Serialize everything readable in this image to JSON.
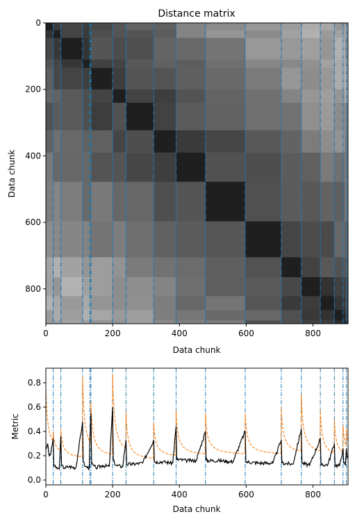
{
  "chart_data": [
    {
      "type": "heatmap",
      "title": "Distance matrix",
      "xlabel": "Data chunk",
      "ylabel": "Data chunk",
      "xlim": [
        0,
        905
      ],
      "ylim": [
        905,
        0
      ],
      "xticks": [
        0,
        200,
        400,
        600,
        800
      ],
      "yticks": [
        0,
        200,
        400,
        600,
        800
      ],
      "colormap": "gray",
      "boundaries": [
        0,
        22,
        45,
        110,
        135,
        200,
        240,
        323,
        390,
        478,
        597,
        705,
        765,
        822,
        864,
        895,
        905
      ],
      "block_darkness": [
        0.92,
        0.85,
        0.95,
        0.88,
        0.92,
        0.88,
        0.86,
        0.88,
        0.9,
        0.84,
        0.9,
        0.78,
        0.92,
        0.85,
        0.9,
        0.86
      ],
      "changepoints": [
        22,
        45,
        110,
        132,
        135,
        200,
        240,
        323,
        390,
        478,
        597,
        705,
        765,
        822,
        864,
        890,
        900
      ],
      "changepoint_color": "#1f77b4"
    },
    {
      "type": "line",
      "xlabel": "Data chunk",
      "ylabel": "Metric",
      "xlim": [
        0,
        905
      ],
      "ylim": [
        -0.04,
        0.92
      ],
      "xticks": [
        0,
        200,
        400,
        600,
        800
      ],
      "yticks": [
        0.0,
        0.2,
        0.4,
        0.6,
        0.8
      ],
      "changepoints": [
        22,
        45,
        110,
        132,
        135,
        200,
        240,
        323,
        390,
        478,
        597,
        705,
        765,
        822,
        864,
        890,
        900
      ],
      "series": [
        {
          "color": "#000000",
          "style": "solid",
          "x": [
            0,
            5,
            10,
            15,
            22,
            24,
            30,
            40,
            45,
            47,
            55,
            70,
            90,
            110,
            112,
            118,
            130,
            132,
            135,
            137,
            150,
            170,
            190,
            200,
            202,
            210,
            230,
            240,
            242,
            260,
            290,
            323,
            325,
            350,
            380,
            390,
            392,
            420,
            450,
            478,
            480,
            520,
            560,
            597,
            599,
            640,
            680,
            705,
            707,
            740,
            765,
            767,
            790,
            822,
            824,
            845,
            864,
            866,
            880,
            890,
            892,
            897,
            900,
            903,
            905
          ],
          "y": [
            0.25,
            0.3,
            0.2,
            0.22,
            0.34,
            0.12,
            0.1,
            0.09,
            0.36,
            0.12,
            0.1,
            0.11,
            0.1,
            0.48,
            0.15,
            0.11,
            0.1,
            0.34,
            0.55,
            0.13,
            0.1,
            0.12,
            0.11,
            0.6,
            0.16,
            0.12,
            0.11,
            0.33,
            0.13,
            0.13,
            0.14,
            0.33,
            0.15,
            0.15,
            0.14,
            0.44,
            0.17,
            0.16,
            0.16,
            0.4,
            0.16,
            0.16,
            0.15,
            0.4,
            0.15,
            0.14,
            0.14,
            0.33,
            0.14,
            0.13,
            0.42,
            0.14,
            0.12,
            0.34,
            0.12,
            0.13,
            0.3,
            0.12,
            0.12,
            0.26,
            0.14,
            0.12,
            0.26,
            0.18,
            0.2
          ]
        },
        {
          "color": "#ff7f0e",
          "style": "dashed",
          "peaks": [
            [
              0,
              0.75
            ],
            [
              22,
              0.4
            ],
            [
              45,
              0.42
            ],
            [
              110,
              0.85
            ],
            [
              135,
              0.64
            ],
            [
              200,
              0.87
            ],
            [
              240,
              0.56
            ],
            [
              323,
              0.47
            ],
            [
              390,
              0.57
            ],
            [
              478,
              0.55
            ],
            [
              597,
              0.55
            ],
            [
              705,
              0.6
            ],
            [
              765,
              0.71
            ],
            [
              822,
              0.58
            ],
            [
              864,
              0.49
            ],
            [
              890,
              0.45
            ],
            [
              900,
              0.42
            ]
          ],
          "floor": [
            0.2,
            0.2,
            0.17,
            0.17,
            0.17,
            0.17,
            0.15,
            0.18,
            0.19,
            0.2,
            0.2,
            0.2,
            0.19,
            0.17,
            0.17,
            0.17,
            0.17
          ]
        }
      ]
    }
  ]
}
